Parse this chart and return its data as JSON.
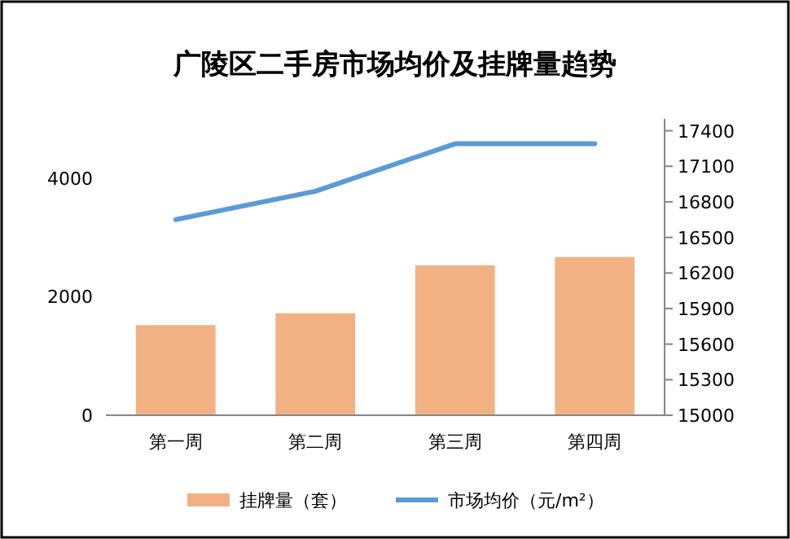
{
  "chart_data": {
    "type": "bar",
    "title": "广陵区二手房市场均价及挂牌量趋势",
    "categories": [
      "第一周",
      "第二周",
      "第三周",
      "第四周"
    ],
    "series": [
      {
        "name": "挂牌量（套）",
        "color": "#f2b183",
        "values": [
          1520,
          1720,
          2530,
          2670
        ]
      },
      {
        "name": "市场均价（元/m²）",
        "type": "line",
        "axis": "y2",
        "color": "#5b9bd5",
        "values": [
          16650,
          16890,
          17290,
          17290
        ]
      }
    ],
    "ylim": [
      0,
      5000
    ],
    "yticks": [
      0,
      2000,
      4000
    ],
    "y2lim": [
      15000,
      17500
    ],
    "y2ticks": [
      15000,
      15300,
      15600,
      15900,
      16200,
      16500,
      16800,
      17100,
      17400
    ],
    "legend": "bottom",
    "grid": false
  }
}
